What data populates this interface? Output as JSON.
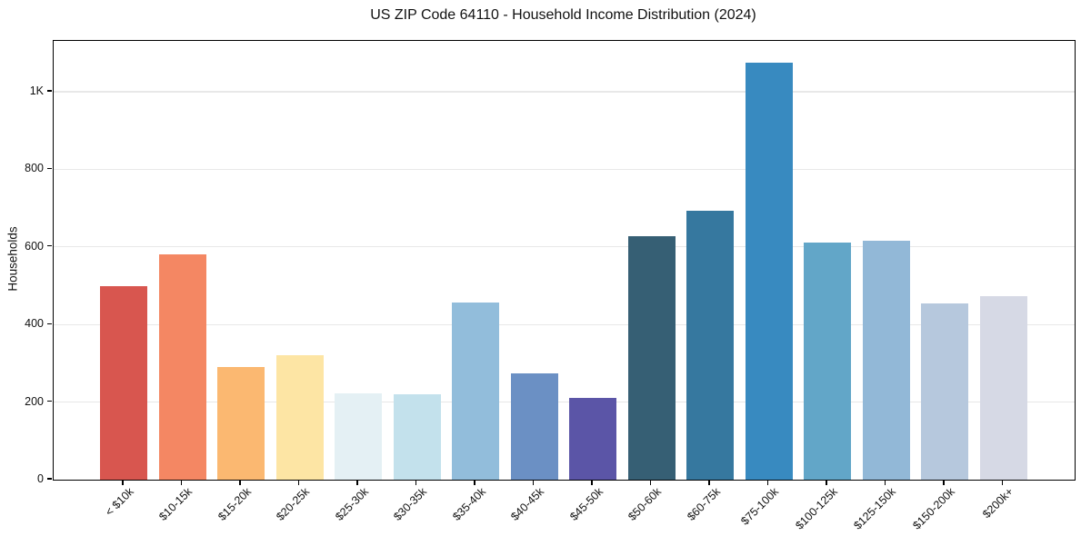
{
  "figure": {
    "background_color": "#ffffff",
    "text_color": "#111111",
    "grid_color": "#e8e8e8",
    "spine_color": "#000000"
  },
  "chart_data": {
    "type": "bar",
    "title": "US ZIP Code 64110 - Household Income Distribution (2024)",
    "xlabel": "",
    "ylabel": "Households",
    "categories": [
      "< $10k",
      "$10-15k",
      "$15-20k",
      "$20-25k",
      "$25-30k",
      "$30-35k",
      "$35-40k",
      "$40-45k",
      "$45-50k",
      "$50-60k",
      "$60-75k",
      "$75-100k",
      "$100-125k",
      "$125-150k",
      "$150-200k",
      "$200k+"
    ],
    "values": [
      499,
      580,
      291,
      320,
      223,
      221,
      457,
      274,
      211,
      627,
      694,
      1075,
      611,
      617,
      455,
      472
    ],
    "bar_colors": [
      "#d8564f",
      "#f48763",
      "#fbb871",
      "#fde5a4",
      "#e4f0f4",
      "#c3e1ec",
      "#92bddb",
      "#6b90c4",
      "#5b55a7",
      "#365f74",
      "#36789f",
      "#388ac0",
      "#62a6c8",
      "#92b8d7",
      "#b6c8dd",
      "#d6d9e5"
    ],
    "ylim": [
      0,
      1131
    ],
    "yticks": {
      "values": [
        0,
        200,
        400,
        600,
        800,
        1000
      ],
      "labels": [
        "0",
        "200",
        "400",
        "600",
        "800",
        "1K"
      ]
    },
    "grid": "horizontal",
    "legend": "none",
    "x_tick_rotation_deg": 45
  }
}
